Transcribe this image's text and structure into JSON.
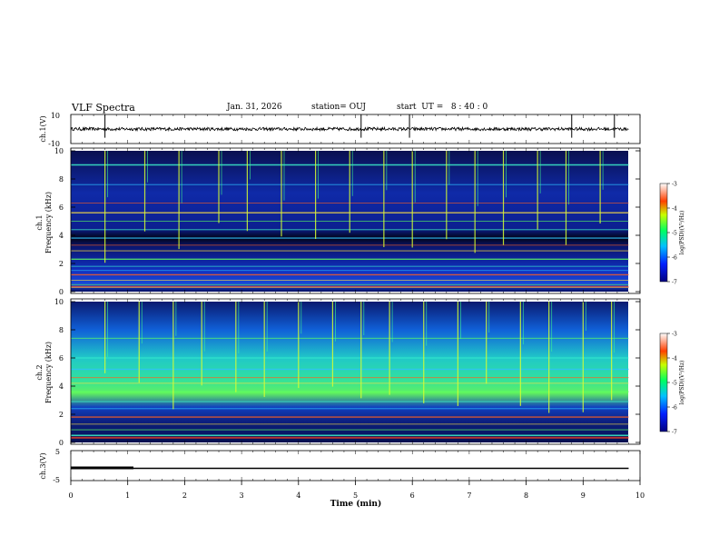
{
  "header": {
    "title": "VLF Spectra",
    "date": "Jan. 31, 2026",
    "station": "station= OUJ",
    "start_ut": "start  UT =   8 : 40 : 0"
  },
  "chart_data": [
    {
      "type": "line",
      "name": "ch1-waveform",
      "ylabel": "ch.1(V)",
      "ylim": [
        -10,
        10
      ],
      "ytick_labels": [
        "10",
        "-10"
      ],
      "baseline": 0,
      "spikes_min": [
        0.6,
        5.1,
        5.95,
        8.8,
        9.55
      ],
      "color": "#000000"
    },
    {
      "type": "heatmap",
      "name": "ch1-spectrogram",
      "ylabel": "ch.1",
      "ylabel2": "Frequency  (kHz)",
      "ylim": [
        0,
        10
      ],
      "ytick_labels": [
        "0",
        "2",
        "4",
        "6",
        "8",
        "10"
      ],
      "colorbar_label": "log(PSD)(V²/Hz)",
      "colorbar_range": [
        -7,
        -3
      ],
      "colorbar_tick_labels": [
        "-3",
        "-4",
        "-5",
        "-6",
        "-7"
      ],
      "spectral_lines_khz": [
        0.3,
        0.5,
        0.8,
        1.2,
        1.5,
        1.8,
        2.3,
        2.9,
        3.3,
        3.8,
        4.4,
        5.0,
        5.6,
        6.3,
        7.6,
        9.0
      ],
      "bursts_min": [
        0.6,
        1.3,
        1.9,
        2.6,
        3.1,
        3.7,
        4.3,
        4.9,
        5.5,
        6.0,
        6.6,
        7.1,
        7.6,
        8.2,
        8.7,
        9.3
      ]
    },
    {
      "type": "heatmap",
      "name": "ch2-spectrogram",
      "ylabel": "ch.2",
      "ylabel2": "Frequency  (kHz)",
      "ylim": [
        0,
        10
      ],
      "ytick_labels": [
        "0",
        "2",
        "4",
        "6",
        "8",
        "10"
      ],
      "colorbar_label": "log(PSD)(V²/Hz)",
      "colorbar_range": [
        -7,
        -3
      ],
      "colorbar_tick_labels": [
        "-3",
        "-4",
        "-5",
        "-6",
        "-7"
      ],
      "spectral_lines_khz": [
        0.5,
        0.9,
        1.3,
        1.8,
        2.4,
        2.9,
        3.6,
        4.2,
        4.6,
        5.2,
        6.0,
        7.4
      ],
      "bursts_min": [
        0.6,
        1.2,
        1.8,
        2.3,
        2.9,
        3.4,
        4.0,
        4.6,
        5.1,
        5.6,
        6.2,
        6.8,
        7.3,
        7.9,
        8.4,
        9.0,
        9.5
      ]
    },
    {
      "type": "line",
      "name": "ch3-level",
      "ylabel": "ch.3(V)",
      "ylim": [
        -5,
        5
      ],
      "ytick_labels": [
        "5",
        "-5"
      ],
      "x": [
        0,
        1.1,
        1.1,
        9.8
      ],
      "y": [
        0,
        0,
        0,
        0
      ],
      "thick_until_min": 1.1,
      "color": "#000000"
    }
  ],
  "xaxis": {
    "label": "Time  (min)",
    "xlim": [
      0,
      10
    ],
    "tick_labels": [
      "0",
      "1",
      "2",
      "3",
      "4",
      "5",
      "6",
      "7",
      "8",
      "9",
      "10"
    ]
  }
}
